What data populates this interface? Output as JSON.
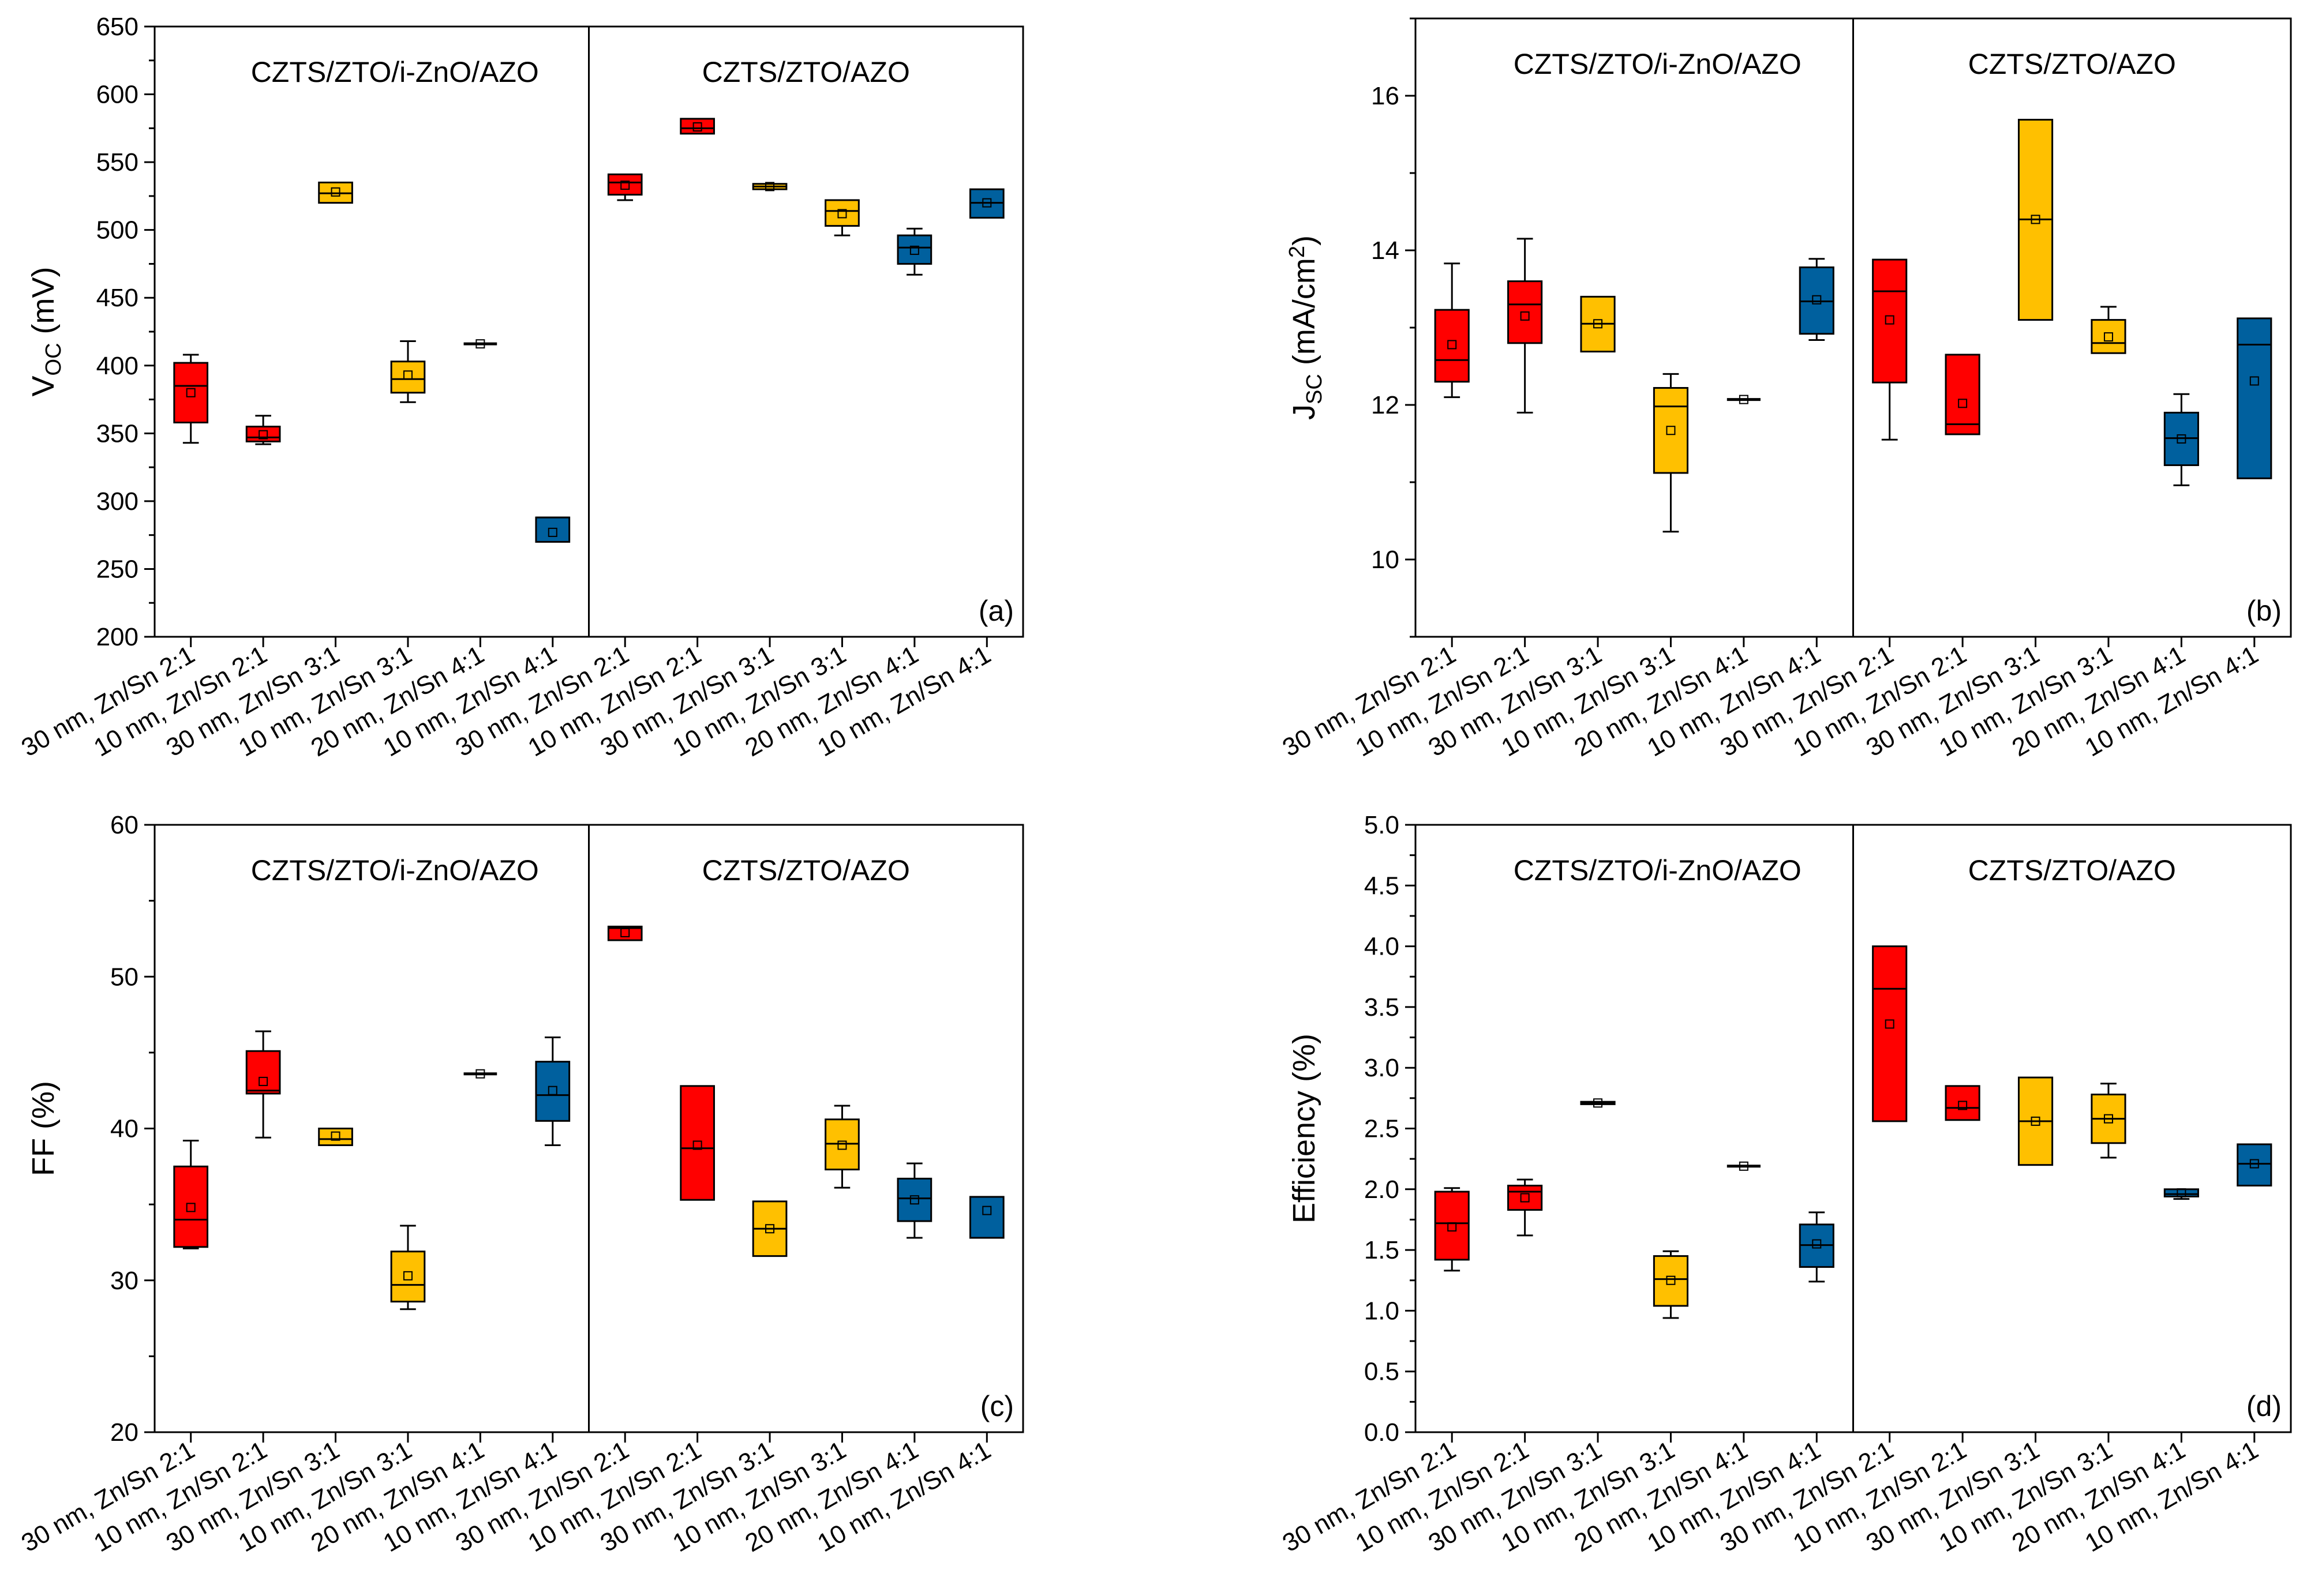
{
  "colors": {
    "red": "#FF0000",
    "yellow": "#FFC000",
    "blue": "#00609E",
    "line": "#000000",
    "background": "#FFFFFF"
  },
  "categories": [
    "30 nm, Zn/Sn 2:1",
    "10 nm, Zn/Sn 2:1",
    "30 nm, Zn/Sn 3:1",
    "10 nm, Zn/Sn 3:1",
    "20 nm, Zn/Sn 4:1",
    "10 nm, Zn/Sn 4:1",
    "30 nm, Zn/Sn 2:1",
    "10 nm, Zn/Sn 2:1",
    "30 nm, Zn/Sn 3:1",
    "10 nm, Zn/Sn 3:1",
    "20 nm, Zn/Sn 4:1",
    "10 nm, Zn/Sn 4:1"
  ],
  "box_colors": [
    "red",
    "red",
    "yellow",
    "yellow",
    "blue",
    "blue",
    "red",
    "red",
    "yellow",
    "yellow",
    "blue",
    "blue"
  ],
  "chart_data": [
    {
      "type": "box",
      "panel": "(a)",
      "ylabel": {
        "main": "V",
        "sub": "OC",
        "rest": " (mV)"
      },
      "ylim": [
        200,
        650
      ],
      "yticks": [
        200,
        250,
        300,
        350,
        400,
        450,
        500,
        550,
        600,
        650
      ],
      "ytick_labels": [
        "200",
        "250",
        "300",
        "350",
        "400",
        "450",
        "500",
        "550",
        "600",
        "650"
      ],
      "minor_step": 25,
      "groups": [
        "CZTS/ZTO/i-ZnO/AZO",
        "CZTS/ZTO/AZO"
      ],
      "boxes": [
        {
          "min": 343,
          "q1": 358,
          "median": 385,
          "q3": 402,
          "max": 408,
          "mean": 380
        },
        {
          "min": 342,
          "q1": 344,
          "median": 347,
          "q3": 355,
          "max": 363,
          "mean": 349
        },
        {
          "min": null,
          "q1": 520,
          "median": 527,
          "q3": 535,
          "max": null,
          "mean": 528
        },
        {
          "min": 373,
          "q1": 380,
          "median": 390,
          "q3": 403,
          "max": 418,
          "mean": 393
        },
        {
          "min": null,
          "q1": 416,
          "median": 416,
          "q3": 416,
          "max": null,
          "mean": 416
        },
        {
          "min": null,
          "q1": 270,
          "median": 288,
          "q3": 288,
          "max": null,
          "mean": 277
        },
        {
          "min": 522,
          "q1": 526,
          "median": 535,
          "q3": 541,
          "max": null,
          "mean": 533
        },
        {
          "min": null,
          "q1": 571,
          "median": 575,
          "q3": 582,
          "max": null,
          "mean": 576
        },
        {
          "min": null,
          "q1": 530,
          "median": 532,
          "q3": 534,
          "max": null,
          "mean": 532
        },
        {
          "min": 496,
          "q1": 503,
          "median": 514,
          "q3": 522,
          "max": null,
          "mean": 512
        },
        {
          "min": 467,
          "q1": 475,
          "median": 487,
          "q3": 496,
          "max": 501,
          "mean": 485
        },
        {
          "min": null,
          "q1": 509,
          "median": 520,
          "q3": 530,
          "max": null,
          "mean": 520
        }
      ]
    },
    {
      "type": "box",
      "panel": "(b)",
      "ylabel": {
        "main": "J",
        "sub": "SC",
        "rest": " (mA/cm",
        "sup": "2",
        "end": ")"
      },
      "ylim": [
        9,
        17
      ],
      "yticks": [
        10,
        12,
        14,
        16
      ],
      "ytick_labels": [
        "10",
        "12",
        "14",
        "16"
      ],
      "minor_step": 1,
      "groups": [
        "CZTS/ZTO/i-ZnO/AZO",
        "CZTS/ZTO/AZO"
      ],
      "boxes": [
        {
          "min": 12.1,
          "q1": 12.3,
          "median": 12.58,
          "q3": 13.23,
          "max": 13.83,
          "mean": 12.78
        },
        {
          "min": 11.9,
          "q1": 12.8,
          "median": 13.3,
          "q3": 13.6,
          "max": 14.15,
          "mean": 13.15
        },
        {
          "min": null,
          "q1": 12.69,
          "median": 13.05,
          "q3": 13.4,
          "max": null,
          "mean": 13.05
        },
        {
          "min": 10.36,
          "q1": 11.12,
          "median": 11.98,
          "q3": 12.22,
          "max": 12.4,
          "mean": 11.67
        },
        {
          "min": null,
          "q1": 12.07,
          "median": 12.07,
          "q3": 12.07,
          "max": null,
          "mean": 12.07
        },
        {
          "min": 12.84,
          "q1": 12.92,
          "median": 13.34,
          "q3": 13.78,
          "max": 13.89,
          "mean": 13.36
        },
        {
          "min": 11.55,
          "q1": 12.29,
          "median": 13.47,
          "q3": 13.88,
          "max": null,
          "mean": 13.1
        },
        {
          "min": null,
          "q1": 11.62,
          "median": 11.75,
          "q3": 12.65,
          "max": null,
          "mean": 12.02
        },
        {
          "min": null,
          "q1": 13.1,
          "median": 14.4,
          "q3": 15.69,
          "max": null,
          "mean": 14.4
        },
        {
          "min": null,
          "q1": 12.67,
          "median": 12.8,
          "q3": 13.1,
          "max": 13.27,
          "mean": 12.88
        },
        {
          "min": 10.96,
          "q1": 11.22,
          "median": 11.57,
          "q3": 11.9,
          "max": 12.14,
          "mean": 11.56
        },
        {
          "min": null,
          "q1": 11.05,
          "median": 12.78,
          "q3": 13.12,
          "max": null,
          "mean": 12.31
        }
      ]
    },
    {
      "type": "box",
      "panel": "(c)",
      "ylabel": {
        "main": "FF (%)"
      },
      "ylim": [
        20,
        60
      ],
      "yticks": [
        20,
        30,
        40,
        50,
        60
      ],
      "ytick_labels": [
        "20",
        "30",
        "40",
        "50",
        "60"
      ],
      "minor_step": 5,
      "groups": [
        "CZTS/ZTO/i-ZnO/AZO",
        "CZTS/ZTO/AZO"
      ],
      "boxes": [
        {
          "min": 32.1,
          "q1": 32.2,
          "median": 34,
          "q3": 37.5,
          "max": 39.2,
          "mean": 34.8
        },
        {
          "min": 39.4,
          "q1": 42.3,
          "median": 42.5,
          "q3": 45.1,
          "max": 46.4,
          "mean": 43.1
        },
        {
          "min": null,
          "q1": 38.9,
          "median": 39.3,
          "q3": 40,
          "max": null,
          "mean": 39.5
        },
        {
          "min": 28.1,
          "q1": 28.6,
          "median": 29.7,
          "q3": 31.9,
          "max": 33.6,
          "mean": 30.3
        },
        {
          "min": null,
          "q1": 43.6,
          "median": 43.6,
          "q3": 43.6,
          "max": null,
          "mean": 43.6
        },
        {
          "min": 38.9,
          "q1": 40.5,
          "median": 42.2,
          "q3": 44.4,
          "max": 46,
          "mean": 42.5
        },
        {
          "min": null,
          "q1": 52.4,
          "median": 53.2,
          "q3": 53.3,
          "max": null,
          "mean": 52.9
        },
        {
          "min": null,
          "q1": 35.3,
          "median": 38.7,
          "q3": 42.8,
          "max": null,
          "mean": 38.9
        },
        {
          "min": null,
          "q1": 31.6,
          "median": 33.4,
          "q3": 35.2,
          "max": null,
          "mean": 33.4
        },
        {
          "min": 36.1,
          "q1": 37.3,
          "median": 39,
          "q3": 40.6,
          "max": 41.5,
          "mean": 38.9
        },
        {
          "min": 32.8,
          "q1": 33.9,
          "median": 35.4,
          "q3": 36.7,
          "max": 37.7,
          "mean": 35.3
        },
        {
          "min": null,
          "q1": 32.8,
          "median": 35.5,
          "q3": 35.5,
          "max": null,
          "mean": 34.6
        }
      ]
    },
    {
      "type": "box",
      "panel": "(d)",
      "ylabel": {
        "main": "Efficiency (%)"
      },
      "ylim": [
        0,
        5
      ],
      "yticks": [
        0,
        0.5,
        1,
        1.5,
        2,
        2.5,
        3,
        3.5,
        4,
        4.5,
        5
      ],
      "ytick_labels": [
        "0.0",
        "0.5",
        "1.0",
        "1.5",
        "2.0",
        "2.5",
        "3.0",
        "3.5",
        "4.0",
        "4.5",
        "5.0"
      ],
      "minor_step": 0.25,
      "groups": [
        "CZTS/ZTO/i-ZnO/AZO",
        "CZTS/ZTO/AZO"
      ],
      "boxes": [
        {
          "min": 1.33,
          "q1": 1.42,
          "median": 1.72,
          "q3": 1.98,
          "max": 2.01,
          "mean": 1.69
        },
        {
          "min": 1.62,
          "q1": 1.83,
          "median": 1.98,
          "q3": 2.03,
          "max": 2.08,
          "mean": 1.93
        },
        {
          "min": null,
          "q1": 2.7,
          "median": 2.71,
          "q3": 2.72,
          "max": null,
          "mean": 2.71
        },
        {
          "min": 0.94,
          "q1": 1.04,
          "median": 1.26,
          "q3": 1.45,
          "max": 1.49,
          "mean": 1.25
        },
        {
          "min": null,
          "q1": 2.19,
          "median": 2.19,
          "q3": 2.19,
          "max": null,
          "mean": 2.19
        },
        {
          "min": 1.24,
          "q1": 1.36,
          "median": 1.54,
          "q3": 1.71,
          "max": 1.81,
          "mean": 1.55
        },
        {
          "min": null,
          "q1": 2.56,
          "median": 3.65,
          "q3": 4.0,
          "max": null,
          "mean": 3.36
        },
        {
          "min": null,
          "q1": 2.57,
          "median": 2.67,
          "q3": 2.85,
          "max": null,
          "mean": 2.69
        },
        {
          "min": null,
          "q1": 2.2,
          "median": 2.56,
          "q3": 2.92,
          "max": null,
          "mean": 2.56
        },
        {
          "min": 2.26,
          "q1": 2.38,
          "median": 2.58,
          "q3": 2.78,
          "max": 2.87,
          "mean": 2.58
        },
        {
          "min": 1.92,
          "q1": 1.94,
          "median": 1.96,
          "q3": 2.0,
          "max": null,
          "mean": 1.97
        },
        {
          "min": null,
          "q1": 2.03,
          "median": 2.21,
          "q3": 2.37,
          "max": null,
          "mean": 2.21
        }
      ]
    }
  ]
}
